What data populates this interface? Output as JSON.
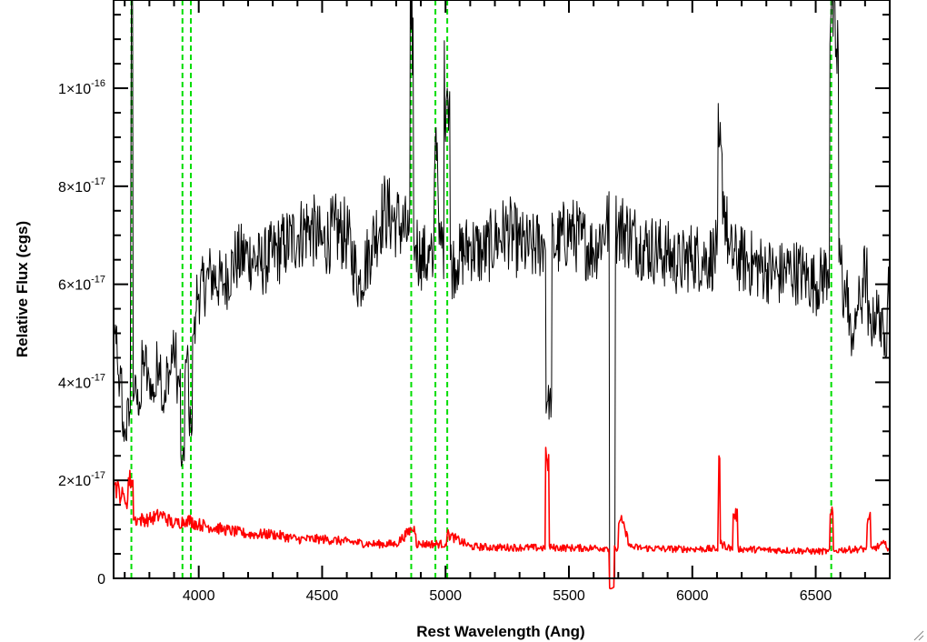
{
  "chart_data": {
    "type": "line",
    "xlabel": "Rest Wavelength (Ang)",
    "ylabel": "Relative Flux (cgs)",
    "xlim": [
      3655,
      6800
    ],
    "ylim": [
      0,
      1.18e-16
    ],
    "x_ticks": [
      4000,
      4500,
      5000,
      5500,
      6000,
      6500
    ],
    "y_ticks": [
      {
        "value": 0,
        "mantissa": "0",
        "exponent": ""
      },
      {
        "value": 2e-17,
        "mantissa": "2×10",
        "exponent": "-17"
      },
      {
        "value": 4e-17,
        "mantissa": "4×10",
        "exponent": "-17"
      },
      {
        "value": 6e-17,
        "mantissa": "6×10",
        "exponent": "-17"
      },
      {
        "value": 8e-17,
        "mantissa": "8×10",
        "exponent": "-17"
      },
      {
        "value": 1e-16,
        "mantissa": "1×10",
        "exponent": "-16"
      }
    ],
    "grid": false,
    "legend": "none",
    "series": [
      {
        "color": "#000000",
        "x": [
          3660,
          3680,
          3700,
          3720,
          3727,
          3740,
          3760,
          3780,
          3800,
          3820,
          3840,
          3860,
          3880,
          3900,
          3920,
          3934,
          3950,
          3968,
          3980,
          4000,
          4050,
          4100,
          4150,
          4200,
          4250,
          4300,
          4350,
          4400,
          4450,
          4500,
          4550,
          4600,
          4650,
          4700,
          4750,
          4800,
          4850,
          4861,
          4880,
          4900,
          4950,
          4959,
          4980,
          5007,
          5030,
          5050,
          5100,
          5150,
          5200,
          5250,
          5300,
          5350,
          5400,
          5412,
          5450,
          5500,
          5550,
          5600,
          5650,
          5676,
          5700,
          5750,
          5800,
          5850,
          5900,
          5950,
          6000,
          6050,
          6100,
          6108,
          6150,
          6200,
          6250,
          6300,
          6350,
          6400,
          6450,
          6500,
          6550,
          6563,
          6584,
          6600,
          6620,
          6650,
          6680,
          6700,
          6720,
          6750,
          6780,
          6800
        ],
        "y": [
          5e-17,
          4e-17,
          3e-17,
          3.4e-17,
          1.2e-16,
          3.8e-17,
          3.6e-17,
          4.4e-17,
          4e-17,
          3.8e-17,
          4.4e-17,
          3.6e-17,
          4.2e-17,
          4.6e-17,
          4e-17,
          2.4e-17,
          4.4e-17,
          3.2e-17,
          5e-17,
          5.8e-17,
          6.2e-17,
          6e-17,
          6.5e-17,
          6.6e-17,
          6.4e-17,
          6.6e-17,
          6.8e-17,
          7e-17,
          7.2e-17,
          6.8e-17,
          7.1e-17,
          7e-17,
          6e-17,
          6.8e-17,
          7.5e-17,
          7.3e-17,
          7e-17,
          1.12e-16,
          6.8e-17,
          6.6e-17,
          6.4e-17,
          9e-17,
          6.8e-17,
          1e-16,
          6.4e-17,
          6.5e-17,
          6.8e-17,
          6.6e-17,
          6.9e-17,
          7.1e-17,
          6.8e-17,
          6.7e-17,
          6.9e-17,
          3.6e-17,
          6.8e-17,
          7.1e-17,
          6.9e-17,
          6.7e-17,
          7.2e-17,
          0.0,
          7.2e-17,
          7e-17,
          6.8e-17,
          6.7e-17,
          6.6e-17,
          6.4e-17,
          6.6e-17,
          6.5e-17,
          6.6e-17,
          8.8e-17,
          6.6e-17,
          6.5e-17,
          6.4e-17,
          6.3e-17,
          6.2e-17,
          6.3e-17,
          6.2e-17,
          6e-17,
          6.3e-17,
          1.16e-16,
          1.08e-16,
          6.4e-17,
          5.8e-17,
          5e-17,
          5.6e-17,
          6.2e-17,
          5.2e-17,
          5.4e-17,
          5e-17,
          6e-17
        ]
      },
      {
        "color": "#ff0000",
        "x": [
          3660,
          3700,
          3727,
          3740,
          3760,
          3800,
          3850,
          3900,
          3950,
          4000,
          4100,
          4200,
          4300,
          4400,
          4500,
          4600,
          4700,
          4800,
          4861,
          4900,
          5000,
          5007,
          5100,
          5200,
          5300,
          5400,
          5412,
          5430,
          5500,
          5600,
          5650,
          5676,
          5690,
          5710,
          5750,
          5800,
          5900,
          6000,
          6100,
          6108,
          6120,
          6160,
          6170,
          6200,
          6300,
          6400,
          6500,
          6550,
          6563,
          6580,
          6600,
          6700,
          6715,
          6730,
          6780,
          6800
        ],
        "y": [
          1.9e-17,
          1.6e-17,
          2e-17,
          1.2e-17,
          1.2e-17,
          1.2e-17,
          1.3e-17,
          1.1e-17,
          1.2e-17,
          1.1e-17,
          1e-17,
          9e-18,
          9e-18,
          8e-18,
          8e-18,
          7.5e-18,
          7e-18,
          7e-18,
          1e-17,
          7e-18,
          7e-18,
          9e-18,
          6.5e-18,
          6.3e-18,
          6.3e-18,
          6.2e-18,
          2.4e-17,
          6.3e-18,
          6.2e-18,
          6.2e-18,
          6.2e-18,
          -2e-18,
          6e-18,
          1.2e-17,
          6.4e-18,
          6.2e-18,
          6e-18,
          6e-18,
          6e-18,
          2.5e-17,
          7e-18,
          6e-18,
          1.3e-17,
          6e-18,
          5.8e-18,
          5.7e-18,
          5.5e-18,
          5.5e-18,
          1.3e-17,
          5.6e-18,
          5.8e-18,
          6e-18,
          1.2e-17,
          6e-18,
          7e-18,
          6e-18
        ]
      }
    ],
    "vlines": [
      {
        "x": 3727,
        "color": "#00dd00",
        "style": "dashed"
      },
      {
        "x": 3934,
        "color": "#00dd00",
        "style": "dashed"
      },
      {
        "x": 3968,
        "color": "#00dd00",
        "style": "dashed"
      },
      {
        "x": 4861,
        "color": "#00dd00",
        "style": "dashed"
      },
      {
        "x": 4959,
        "color": "#00dd00",
        "style": "dashed"
      },
      {
        "x": 5007,
        "color": "#00dd00",
        "style": "dashed"
      },
      {
        "x": 6563,
        "color": "#00dd00",
        "style": "dashed"
      }
    ]
  }
}
